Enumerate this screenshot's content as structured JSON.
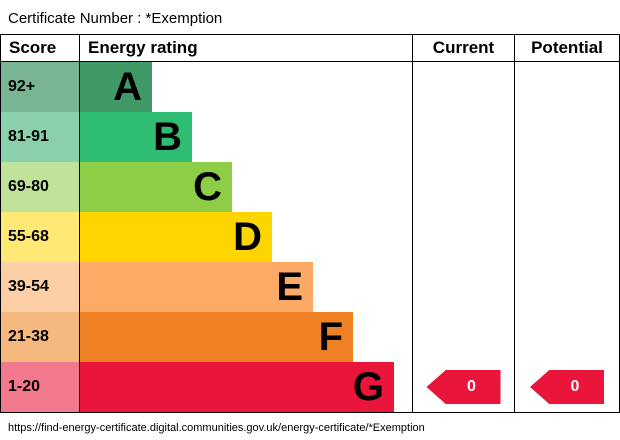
{
  "title": "Certificate Number : *Exemption",
  "footer_url": "https://find-energy-certificate.digital.communities.gov.uk/energy-certificate/*Exemption",
  "header": {
    "score": "Score",
    "rating": "Energy rating",
    "current": "Current",
    "potential": "Potential"
  },
  "chart_data": {
    "type": "bar",
    "title": "Energy rating",
    "categories": [
      "A",
      "B",
      "C",
      "D",
      "E",
      "F",
      "G"
    ],
    "bands": [
      {
        "letter": "A",
        "score_range": "92+",
        "color": "#3f9a68",
        "tint": "#79b493"
      },
      {
        "letter": "B",
        "score_range": "81-91",
        "color": "#2ebd72",
        "tint": "#8ad1ab"
      },
      {
        "letter": "C",
        "score_range": "69-80",
        "color": "#8dce46",
        "tint": "#c1e29b"
      },
      {
        "letter": "D",
        "score_range": "55-68",
        "color": "#ffd500",
        "tint": "#ffe873"
      },
      {
        "letter": "E",
        "score_range": "39-54",
        "color": "#fcaa65",
        "tint": "#fccfa6"
      },
      {
        "letter": "F",
        "score_range": "21-38",
        "color": "#ef8023",
        "tint": "#f5b87e"
      },
      {
        "letter": "G",
        "score_range": "1-20",
        "color": "#e9153b",
        "tint": "#f2788d"
      }
    ],
    "current": {
      "value": "0",
      "band": "G"
    },
    "potential": {
      "value": "0",
      "band": "G"
    },
    "arrow_color": "#e9153b"
  }
}
